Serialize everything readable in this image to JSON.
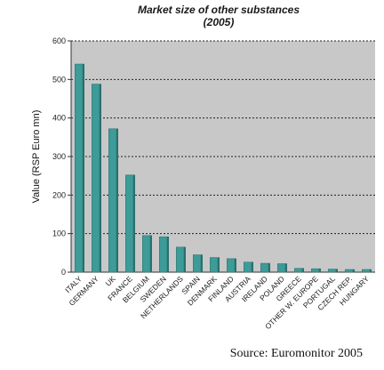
{
  "chart_data": {
    "type": "bar",
    "title": "Market size of other substances",
    "subtitle": "(2005)",
    "ylabel": "Value (RSP Euro mn)",
    "xlabel": "",
    "ylim": [
      0,
      600
    ],
    "yticks": [
      0,
      100,
      200,
      300,
      400,
      500,
      600
    ],
    "grid": true,
    "legend": "none",
    "categories": [
      "ITALY",
      "GERMANY",
      "UK",
      "FRANCE",
      "BELGIUM",
      "SWEDEN",
      "NETHERLANDS",
      "SPAIN",
      "DENMARK",
      "FINLAND",
      "AUSTRIA",
      "IRELAND",
      "POLAND",
      "GREECE",
      "OTHER W. EUROPE",
      "PORTUGAL",
      "CZECH REP.",
      "HUNGARY"
    ],
    "values": [
      540,
      488,
      372,
      252,
      95,
      92,
      65,
      45,
      38,
      35,
      26,
      23,
      22,
      10,
      9,
      8,
      7,
      7
    ],
    "bar_color": "#3d9b98",
    "plot_background": "#c8c8c8"
  },
  "source": "Source: Euromonitor 2005"
}
